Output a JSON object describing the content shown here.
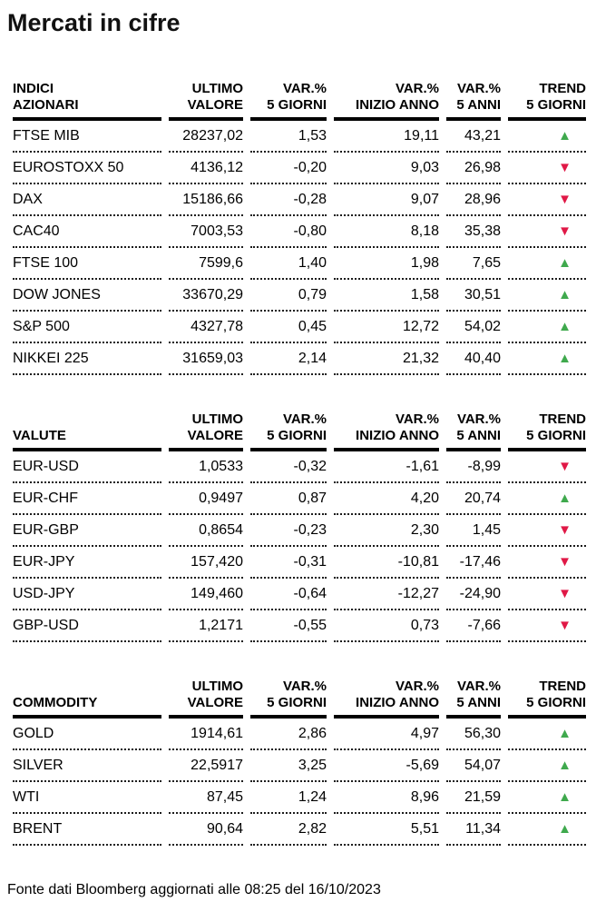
{
  "title": "Mercati in cifre",
  "footer": "Fonte dati Bloomberg aggiornati alle 08:25 del 16/10/2023",
  "colors": {
    "trend_up": "#3fa94d",
    "trend_down": "#e01846"
  },
  "columns": [
    {
      "key": "ultimo-valore",
      "line1": "ULTIMO",
      "line2": "VALORE"
    },
    {
      "key": "var-5-giorni",
      "line1": "VAR.%",
      "line2": "5 GIORNI"
    },
    {
      "key": "var-inizio-anno",
      "line1": "VAR.%",
      "line2": "INIZIO ANNO"
    },
    {
      "key": "var-5-anni",
      "line1": "VAR.%",
      "line2": "5 ANNI"
    },
    {
      "key": "trend-5-giorni",
      "line1": "TREND",
      "line2": "5 GIORNI"
    }
  ],
  "trend_icons": {
    "up": "▲",
    "down": "▼"
  },
  "tables": [
    {
      "id": "indici-azionari",
      "name_lines": [
        "INDICI",
        "AZIONARI"
      ],
      "rows": [
        {
          "label": "FTSE MIB",
          "ultimo": "28237,02",
          "var_5_giorni": "1,53",
          "var_inizio_anno": "19,11",
          "var_5_anni": "43,21",
          "trend": "up"
        },
        {
          "label": "EUROSTOXX 50",
          "ultimo": "4136,12",
          "var_5_giorni": "-0,20",
          "var_inizio_anno": "9,03",
          "var_5_anni": "26,98",
          "trend": "down"
        },
        {
          "label": "DAX",
          "ultimo": "15186,66",
          "var_5_giorni": "-0,28",
          "var_inizio_anno": "9,07",
          "var_5_anni": "28,96",
          "trend": "down"
        },
        {
          "label": "CAC40",
          "ultimo": "7003,53",
          "var_5_giorni": "-0,80",
          "var_inizio_anno": "8,18",
          "var_5_anni": "35,38",
          "trend": "down"
        },
        {
          "label": "FTSE 100",
          "ultimo": "7599,6",
          "var_5_giorni": "1,40",
          "var_inizio_anno": "1,98",
          "var_5_anni": "7,65",
          "trend": "up"
        },
        {
          "label": "DOW JONES",
          "ultimo": "33670,29",
          "var_5_giorni": "0,79",
          "var_inizio_anno": "1,58",
          "var_5_anni": "30,51",
          "trend": "up"
        },
        {
          "label": "S&P 500",
          "ultimo": "4327,78",
          "var_5_giorni": "0,45",
          "var_inizio_anno": "12,72",
          "var_5_anni": "54,02",
          "trend": "up"
        },
        {
          "label": "NIKKEI 225",
          "ultimo": "31659,03",
          "var_5_giorni": "2,14",
          "var_inizio_anno": "21,32",
          "var_5_anni": "40,40",
          "trend": "up"
        }
      ]
    },
    {
      "id": "valute",
      "name_lines": [
        "VALUTE"
      ],
      "rows": [
        {
          "label": "EUR-USD",
          "ultimo": "1,0533",
          "var_5_giorni": "-0,32",
          "var_inizio_anno": "-1,61",
          "var_5_anni": "-8,99",
          "trend": "down"
        },
        {
          "label": "EUR-CHF",
          "ultimo": "0,9497",
          "var_5_giorni": "0,87",
          "var_inizio_anno": "4,20",
          "var_5_anni": "20,74",
          "trend": "up"
        },
        {
          "label": "EUR-GBP",
          "ultimo": "0,8654",
          "var_5_giorni": "-0,23",
          "var_inizio_anno": "2,30",
          "var_5_anni": "1,45",
          "trend": "down"
        },
        {
          "label": "EUR-JPY",
          "ultimo": "157,420",
          "var_5_giorni": "-0,31",
          "var_inizio_anno": "-10,81",
          "var_5_anni": "-17,46",
          "trend": "down"
        },
        {
          "label": "USD-JPY",
          "ultimo": "149,460",
          "var_5_giorni": "-0,64",
          "var_inizio_anno": "-12,27",
          "var_5_anni": "-24,90",
          "trend": "down"
        },
        {
          "label": "GBP-USD",
          "ultimo": "1,2171",
          "var_5_giorni": "-0,55",
          "var_inizio_anno": "0,73",
          "var_5_anni": "-7,66",
          "trend": "down"
        }
      ]
    },
    {
      "id": "commodity",
      "name_lines": [
        "COMMODITY"
      ],
      "rows": [
        {
          "label": "GOLD",
          "ultimo": "1914,61",
          "var_5_giorni": "2,86",
          "var_inizio_anno": "4,97",
          "var_5_anni": "56,30",
          "trend": "up"
        },
        {
          "label": "SILVER",
          "ultimo": "22,5917",
          "var_5_giorni": "3,25",
          "var_inizio_anno": "-5,69",
          "var_5_anni": "54,07",
          "trend": "up"
        },
        {
          "label": "WTI",
          "ultimo": "87,45",
          "var_5_giorni": "1,24",
          "var_inizio_anno": "8,96",
          "var_5_anni": "21,59",
          "trend": "up"
        },
        {
          "label": "BRENT",
          "ultimo": "90,64",
          "var_5_giorni": "2,82",
          "var_inizio_anno": "5,51",
          "var_5_anni": "11,34",
          "trend": "up"
        }
      ]
    }
  ]
}
